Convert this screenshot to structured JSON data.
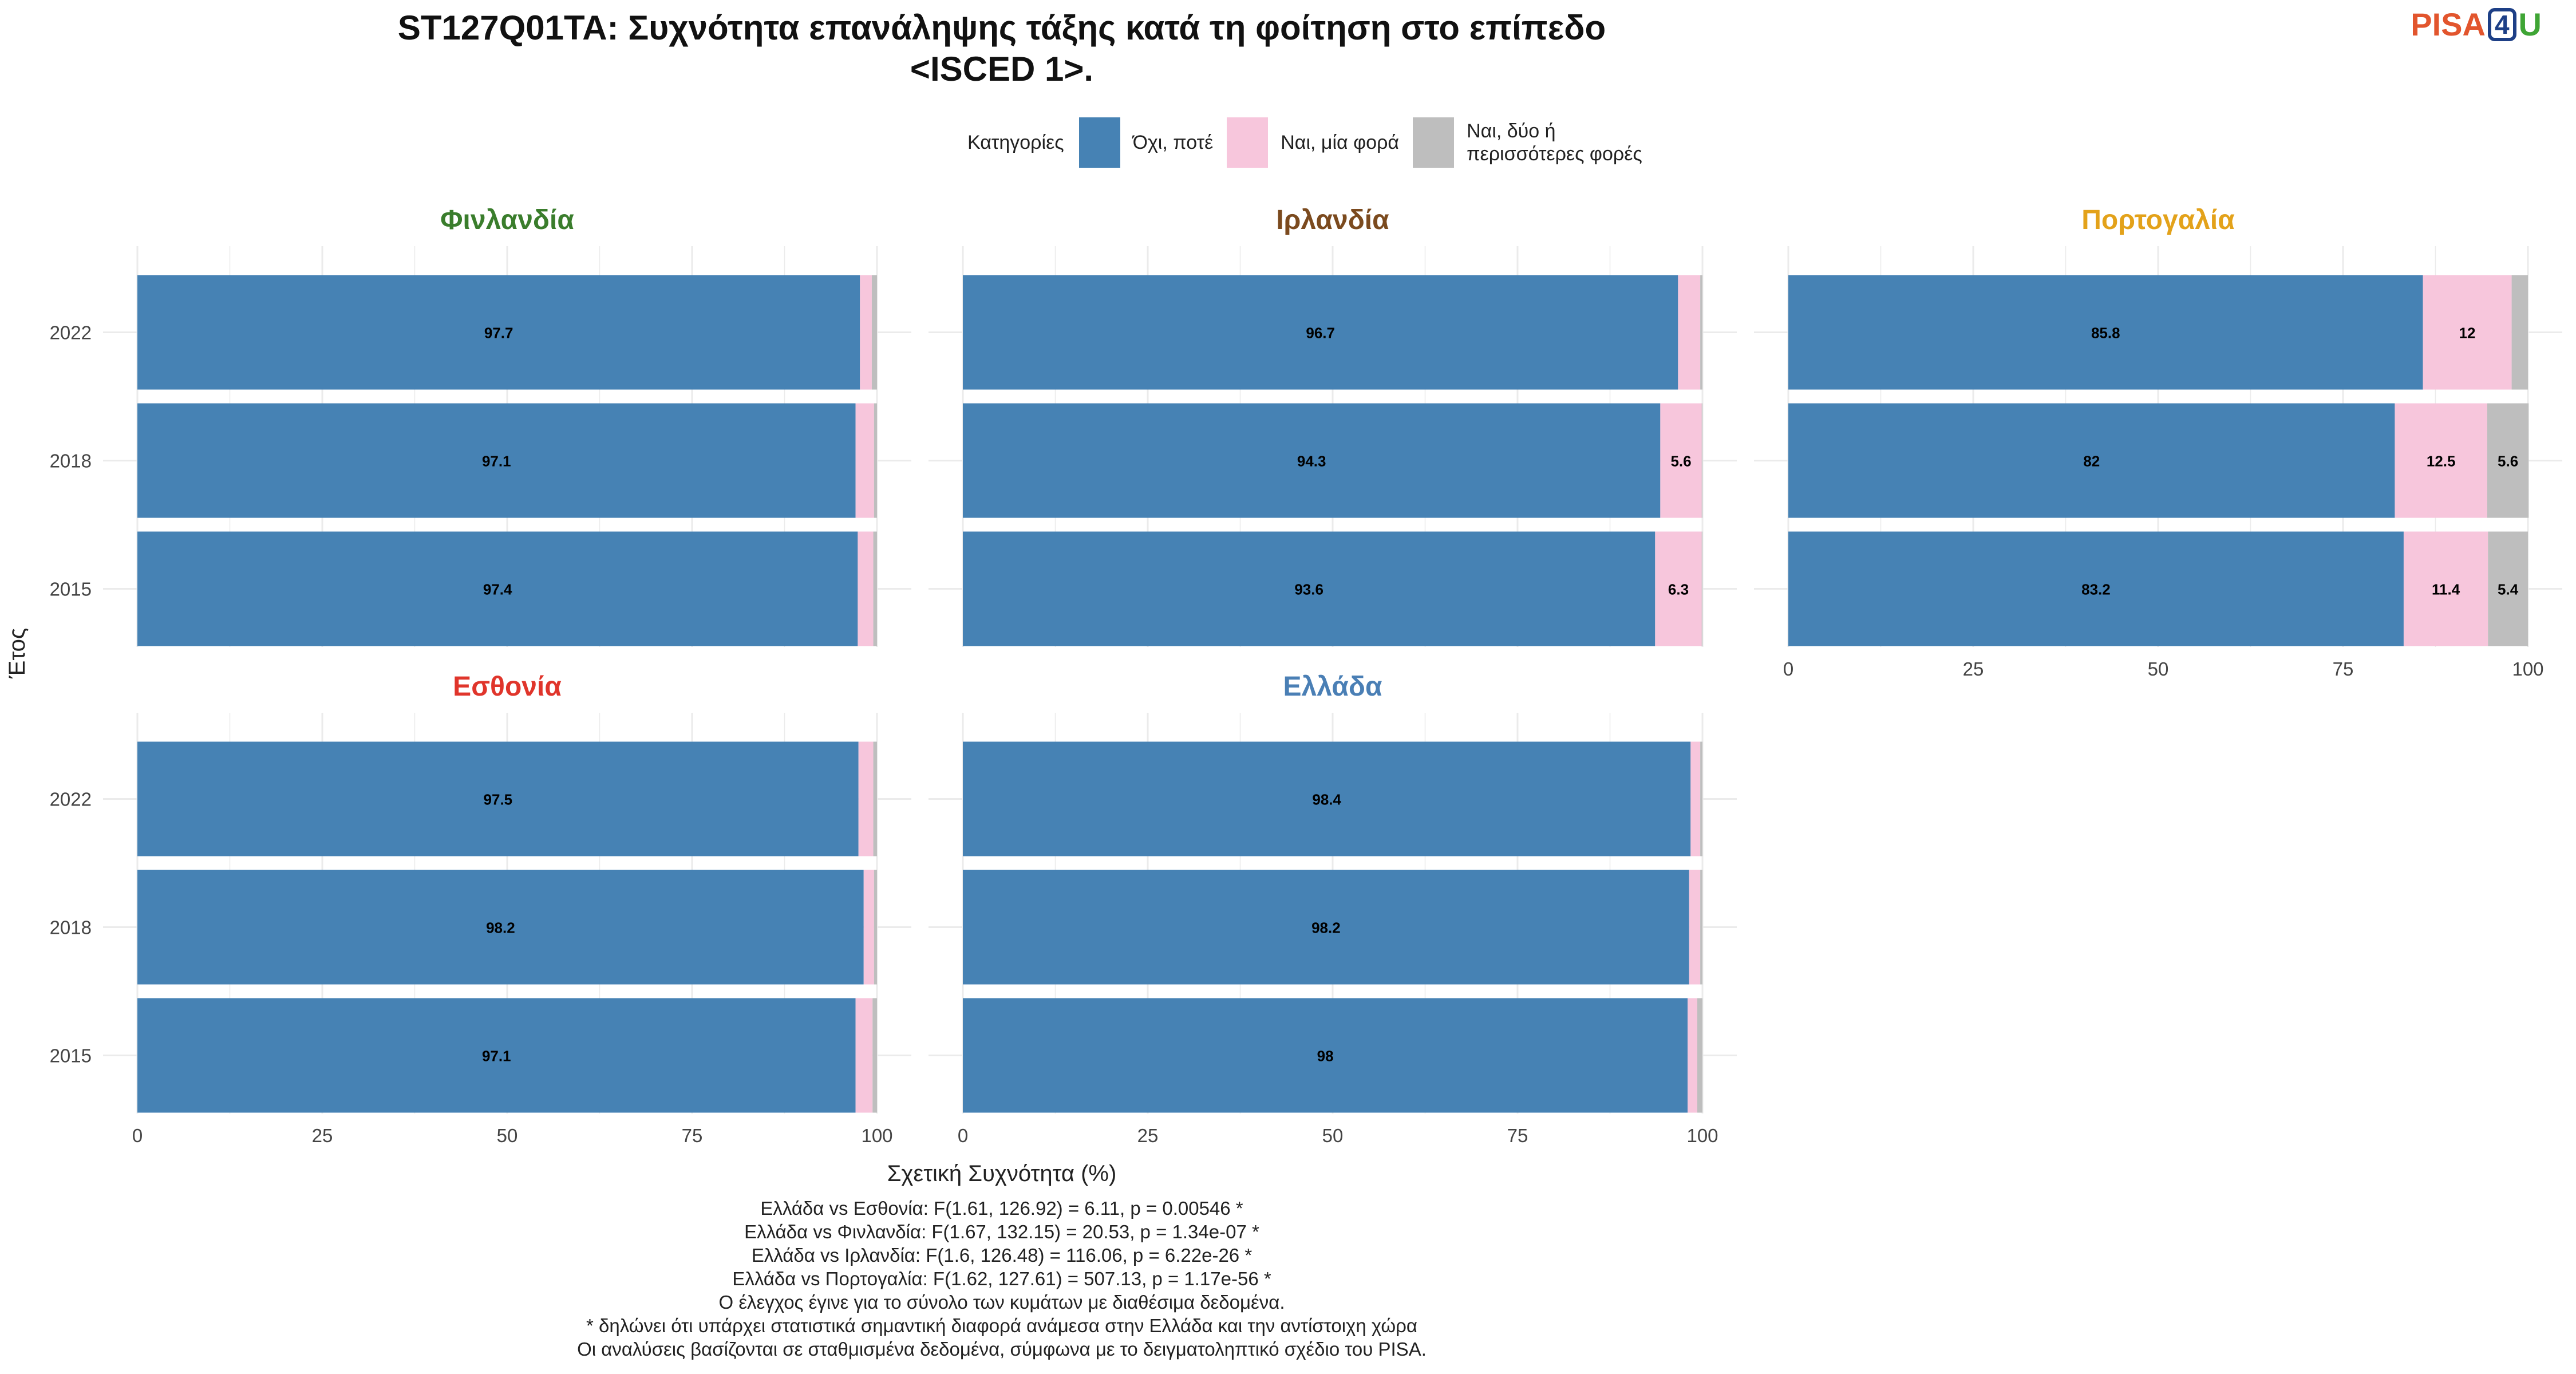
{
  "title_line1": "ST127Q01TA: Συχνότητα επανάληψης τάξης κατά τη φοίτηση στο επίπεδο",
  "title_line2": "<ISCED 1>.",
  "logo": {
    "p": "PISA",
    "four": "4",
    "u": "U"
  },
  "legend": {
    "title": "Κατηγορίες",
    "items": [
      {
        "label": "Όχι, ποτέ",
        "color": "#4682b4"
      },
      {
        "label": "Ναι, μία φορά",
        "color": "#f7c6dc"
      },
      {
        "label_line1": "Ναι, δύο ή",
        "label_line2": "περισσότερες φορές",
        "color": "#bebebe"
      }
    ]
  },
  "y_axis_label": "Έτος",
  "x_axis_label": "Σχετική Συχνότητα (%)",
  "caption_lines": [
    "Ελλάδα vs Εσθονία: F(1.61, 126.92) = 6.11, p = 0.00546 *",
    "Ελλάδα vs Φινλανδία: F(1.67, 132.15) = 20.53, p = 1.34e-07 *",
    "Ελλάδα vs Ιρλανδία: F(1.6, 126.48) = 116.06, p = 6.22e-26 *",
    "Ελλάδα vs Πορτογαλία: F(1.62, 127.61) = 507.13, p = 1.17e-56 *",
    "Ο έλεγχος έγινε για το σύνολο των κυμάτων με διαθέσιμα δεδομένα.",
    "* δηλώνει ότι υπάρχει στατιστικά σημαντική διαφορά ανάμεσα στην Ελλάδα και την αντίστοιχη χώρα",
    "Οι αναλύσεις βασίζονται σε σταθμισμένα δεδομένα, σύμφωνα με το δειγματοληπτικό σχέδιο του PISA."
  ],
  "chart_data": {
    "type": "bar",
    "orientation": "horizontal",
    "stacked": true,
    "xlim": [
      0,
      100
    ],
    "x_ticks": [
      "0",
      "25",
      "50",
      "75",
      "100"
    ],
    "categories": [
      "2022",
      "2018",
      "2015"
    ],
    "series_names": [
      "Όχι, ποτέ",
      "Ναι, μία φορά",
      "Ναι, δύο ή περισσότερες φορές"
    ],
    "colors": [
      "#4682b4",
      "#f7c6dc",
      "#bebebe"
    ],
    "panels": [
      {
        "country": "Φινλανδία",
        "color": "#3a7d2c",
        "rows": [
          {
            "year": "2022",
            "values": [
              97.7,
              1.6,
              0.7
            ]
          },
          {
            "year": "2018",
            "values": [
              97.1,
              2.5,
              0.4
            ]
          },
          {
            "year": "2015",
            "values": [
              97.4,
              2.1,
              0.5
            ]
          }
        ]
      },
      {
        "country": "Ιρλανδία",
        "color": "#7b4a1e",
        "rows": [
          {
            "year": "2022",
            "values": [
              96.7,
              3.0,
              0.3
            ]
          },
          {
            "year": "2018",
            "values": [
              94.3,
              5.6,
              0.1
            ]
          },
          {
            "year": "2015",
            "values": [
              93.6,
              6.3,
              0.1
            ]
          }
        ]
      },
      {
        "country": "Πορτογαλία",
        "color": "#e3a21a",
        "rows": [
          {
            "year": "2022",
            "values": [
              85.8,
              12,
              2.2
            ]
          },
          {
            "year": "2018",
            "values": [
              82,
              12.5,
              5.6
            ]
          },
          {
            "year": "2015",
            "values": [
              83.2,
              11.4,
              5.4
            ]
          }
        ]
      },
      {
        "country": "Εσθονία",
        "color": "#e0352b",
        "rows": [
          {
            "year": "2022",
            "values": [
              97.5,
              2.0,
              0.5
            ]
          },
          {
            "year": "2018",
            "values": [
              98.2,
              1.4,
              0.4
            ]
          },
          {
            "year": "2015",
            "values": [
              97.1,
              2.3,
              0.6
            ]
          }
        ]
      },
      {
        "country": "Ελλάδα",
        "color": "#4a7fb5",
        "rows": [
          {
            "year": "2022",
            "values": [
              98.4,
              1.3,
              0.3
            ]
          },
          {
            "year": "2018",
            "values": [
              98.2,
              1.5,
              0.3
            ]
          },
          {
            "year": "2015",
            "values": [
              98,
              1.3,
              0.7
            ]
          }
        ]
      }
    ]
  }
}
